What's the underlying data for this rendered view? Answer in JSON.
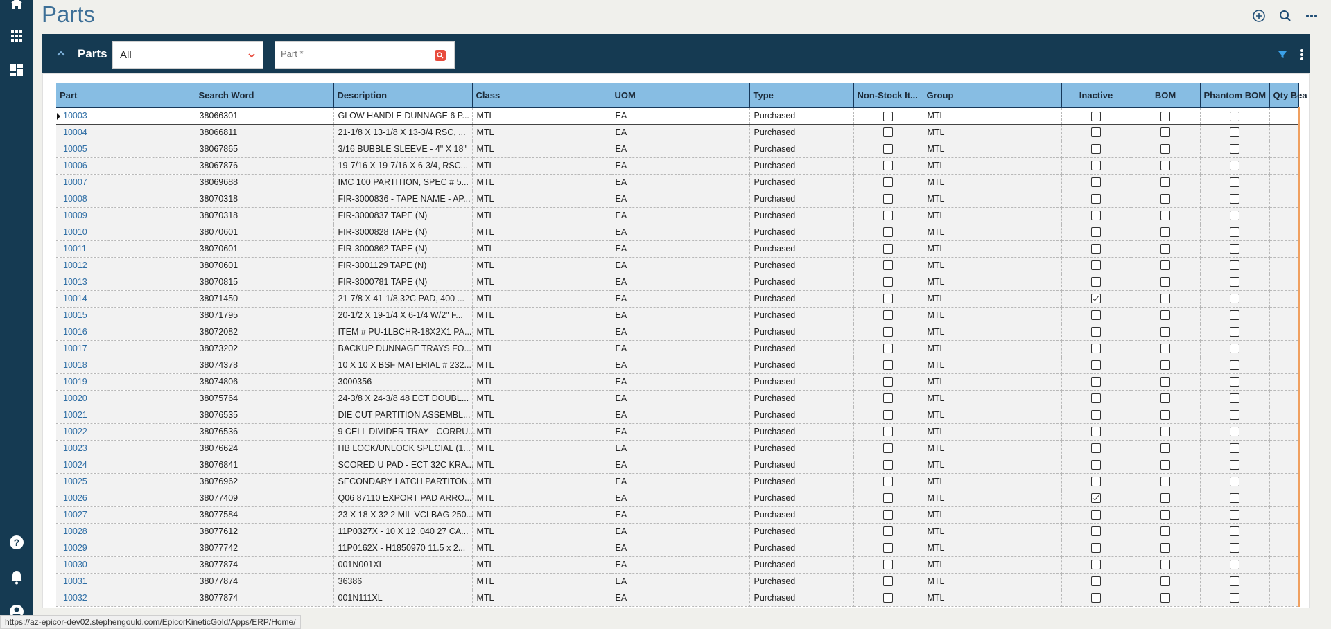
{
  "app": {
    "title": "Parts"
  },
  "panel": {
    "title": "Parts",
    "filter_value": "All",
    "part_placeholder": "Part *"
  },
  "grid": {
    "columns": [
      "Part",
      "Search Word",
      "Description",
      "Class",
      "UOM",
      "Type",
      "Non-Stock It...",
      "Group",
      "Inactive",
      "BOM",
      "Phantom BOM",
      "Qty Bea"
    ],
    "rows": [
      {
        "part": "10003",
        "search": "38066301",
        "desc": "GLOW HANDLE DUNNAGE 6 P...",
        "class": "MTL",
        "uom": "EA",
        "type": "Purchased",
        "nonstock": false,
        "group": "MTL",
        "inactive": false,
        "bom": false,
        "phantom": false
      },
      {
        "part": "10004",
        "search": "38066811",
        "desc": "21-1/8 X 13-1/8 X 13-3/4 RSC, ...",
        "class": "MTL",
        "uom": "EA",
        "type": "Purchased",
        "nonstock": false,
        "group": "MTL",
        "inactive": false,
        "bom": false,
        "phantom": false
      },
      {
        "part": "10005",
        "search": "38067865",
        "desc": "3/16 BUBBLE SLEEVE - 4\" X 18\"",
        "class": "MTL",
        "uom": "EA",
        "type": "Purchased",
        "nonstock": false,
        "group": "MTL",
        "inactive": false,
        "bom": false,
        "phantom": false
      },
      {
        "part": "10006",
        "search": "38067876",
        "desc": "19-7/16 X 19-7/16 X 6-3/4, RSC...",
        "class": "MTL",
        "uom": "EA",
        "type": "Purchased",
        "nonstock": false,
        "group": "MTL",
        "inactive": false,
        "bom": false,
        "phantom": false
      },
      {
        "part": "10007",
        "search": "38069688",
        "desc": "IMC 100 PARTITION, SPEC # 5...",
        "class": "MTL",
        "uom": "EA",
        "type": "Purchased",
        "nonstock": false,
        "group": "MTL",
        "inactive": false,
        "bom": false,
        "phantom": false
      },
      {
        "part": "10008",
        "search": "38070318",
        "desc": "FIR-3000836 - TAPE NAME - AP...",
        "class": "MTL",
        "uom": "EA",
        "type": "Purchased",
        "nonstock": false,
        "group": "MTL",
        "inactive": false,
        "bom": false,
        "phantom": false
      },
      {
        "part": "10009",
        "search": "38070318",
        "desc": "FIR-3000837 TAPE (N)",
        "class": "MTL",
        "uom": "EA",
        "type": "Purchased",
        "nonstock": false,
        "group": "MTL",
        "inactive": false,
        "bom": false,
        "phantom": false
      },
      {
        "part": "10010",
        "search": "38070601",
        "desc": "FIR-3000828 TAPE (N)",
        "class": "MTL",
        "uom": "EA",
        "type": "Purchased",
        "nonstock": false,
        "group": "MTL",
        "inactive": false,
        "bom": false,
        "phantom": false
      },
      {
        "part": "10011",
        "search": "38070601",
        "desc": "FIR-3000862 TAPE (N)",
        "class": "MTL",
        "uom": "EA",
        "type": "Purchased",
        "nonstock": false,
        "group": "MTL",
        "inactive": false,
        "bom": false,
        "phantom": false
      },
      {
        "part": "10012",
        "search": "38070601",
        "desc": "FIR-3001129 TAPE (N)",
        "class": "MTL",
        "uom": "EA",
        "type": "Purchased",
        "nonstock": false,
        "group": "MTL",
        "inactive": false,
        "bom": false,
        "phantom": false
      },
      {
        "part": "10013",
        "search": "38070815",
        "desc": "FIR-3000781 TAPE (N)",
        "class": "MTL",
        "uom": "EA",
        "type": "Purchased",
        "nonstock": false,
        "group": "MTL",
        "inactive": false,
        "bom": false,
        "phantom": false
      },
      {
        "part": "10014",
        "search": "38071450",
        "desc": "21-7/8 X 41-1/8,32C PAD, 400 ...",
        "class": "MTL",
        "uom": "EA",
        "type": "Purchased",
        "nonstock": false,
        "group": "MTL",
        "inactive": true,
        "bom": false,
        "phantom": false
      },
      {
        "part": "10015",
        "search": "38071795",
        "desc": "20-1/2 X 19-1/4 X 6-1/4 W/2\" F...",
        "class": "MTL",
        "uom": "EA",
        "type": "Purchased",
        "nonstock": false,
        "group": "MTL",
        "inactive": false,
        "bom": false,
        "phantom": false
      },
      {
        "part": "10016",
        "search": "38072082",
        "desc": "ITEM # PU-1LBCHR-18X2X1 PA...",
        "class": "MTL",
        "uom": "EA",
        "type": "Purchased",
        "nonstock": false,
        "group": "MTL",
        "inactive": false,
        "bom": false,
        "phantom": false
      },
      {
        "part": "10017",
        "search": "38073202",
        "desc": "BACKUP DUNNAGE TRAYS FO...",
        "class": "MTL",
        "uom": "EA",
        "type": "Purchased",
        "nonstock": false,
        "group": "MTL",
        "inactive": false,
        "bom": false,
        "phantom": false
      },
      {
        "part": "10018",
        "search": "38074378",
        "desc": "10 X 10 X BSF MATERIAL # 232...",
        "class": "MTL",
        "uom": "EA",
        "type": "Purchased",
        "nonstock": false,
        "group": "MTL",
        "inactive": false,
        "bom": false,
        "phantom": false
      },
      {
        "part": "10019",
        "search": "38074806",
        "desc": "3000356",
        "class": "MTL",
        "uom": "EA",
        "type": "Purchased",
        "nonstock": false,
        "group": "MTL",
        "inactive": false,
        "bom": false,
        "phantom": false
      },
      {
        "part": "10020",
        "search": "38075764",
        "desc": "24-3/8 X 24-3/8 48 ECT DOUBL...",
        "class": "MTL",
        "uom": "EA",
        "type": "Purchased",
        "nonstock": false,
        "group": "MTL",
        "inactive": false,
        "bom": false,
        "phantom": false
      },
      {
        "part": "10021",
        "search": "38076535",
        "desc": "DIE CUT PARTITION ASSEMBL...",
        "class": "MTL",
        "uom": "EA",
        "type": "Purchased",
        "nonstock": false,
        "group": "MTL",
        "inactive": false,
        "bom": false,
        "phantom": false
      },
      {
        "part": "10022",
        "search": "38076536",
        "desc": "9 CELL DIVIDER TRAY - CORRU...",
        "class": "MTL",
        "uom": "EA",
        "type": "Purchased",
        "nonstock": false,
        "group": "MTL",
        "inactive": false,
        "bom": false,
        "phantom": false
      },
      {
        "part": "10023",
        "search": "38076624",
        "desc": "HB LOCK/UNLOCK SPECIAL (1...",
        "class": "MTL",
        "uom": "EA",
        "type": "Purchased",
        "nonstock": false,
        "group": "MTL",
        "inactive": false,
        "bom": false,
        "phantom": false
      },
      {
        "part": "10024",
        "search": "38076841",
        "desc": "SCORED U PAD - ECT 32C KRA...",
        "class": "MTL",
        "uom": "EA",
        "type": "Purchased",
        "nonstock": false,
        "group": "MTL",
        "inactive": false,
        "bom": false,
        "phantom": false
      },
      {
        "part": "10025",
        "search": "38076962",
        "desc": "SECONDARY LATCH PARTITON...",
        "class": "MTL",
        "uom": "EA",
        "type": "Purchased",
        "nonstock": false,
        "group": "MTL",
        "inactive": false,
        "bom": false,
        "phantom": false
      },
      {
        "part": "10026",
        "search": "38077409",
        "desc": "Q06 87110 EXPORT PAD ARRO...",
        "class": "MTL",
        "uom": "EA",
        "type": "Purchased",
        "nonstock": false,
        "group": "MTL",
        "inactive": true,
        "bom": false,
        "phantom": false
      },
      {
        "part": "10027",
        "search": "38077584",
        "desc": "23 X 18 X 32 2 MIL VCI BAG 250...",
        "class": "MTL",
        "uom": "EA",
        "type": "Purchased",
        "nonstock": false,
        "group": "MTL",
        "inactive": false,
        "bom": false,
        "phantom": false
      },
      {
        "part": "10028",
        "search": "38077612",
        "desc": "11P0327X - 10 X 12 .040 27 CA...",
        "class": "MTL",
        "uom": "EA",
        "type": "Purchased",
        "nonstock": false,
        "group": "MTL",
        "inactive": false,
        "bom": false,
        "phantom": false
      },
      {
        "part": "10029",
        "search": "38077742",
        "desc": "11P0162X - H1850970 11.5 x 2...",
        "class": "MTL",
        "uom": "EA",
        "type": "Purchased",
        "nonstock": false,
        "group": "MTL",
        "inactive": false,
        "bom": false,
        "phantom": false
      },
      {
        "part": "10030",
        "search": "38077874",
        "desc": "001N001XL",
        "class": "MTL",
        "uom": "EA",
        "type": "Purchased",
        "nonstock": false,
        "group": "MTL",
        "inactive": false,
        "bom": false,
        "phantom": false
      },
      {
        "part": "10031",
        "search": "38077874",
        "desc": "36386",
        "class": "MTL",
        "uom": "EA",
        "type": "Purchased",
        "nonstock": false,
        "group": "MTL",
        "inactive": false,
        "bom": false,
        "phantom": false
      },
      {
        "part": "10032",
        "search": "38077874",
        "desc": "001N111XL",
        "class": "MTL",
        "uom": "EA",
        "type": "Purchased",
        "nonstock": false,
        "group": "MTL",
        "inactive": false,
        "bom": false,
        "phantom": false
      }
    ]
  },
  "status_url": "https://az-epicor-dev02.stephengould.com/EpicorKineticGold/Apps/ERP/Home/",
  "colors": {
    "sidebar": "#153a52",
    "header_row": "#87bde3",
    "link": "#2f6ea5",
    "accent": "#e84c3d"
  }
}
